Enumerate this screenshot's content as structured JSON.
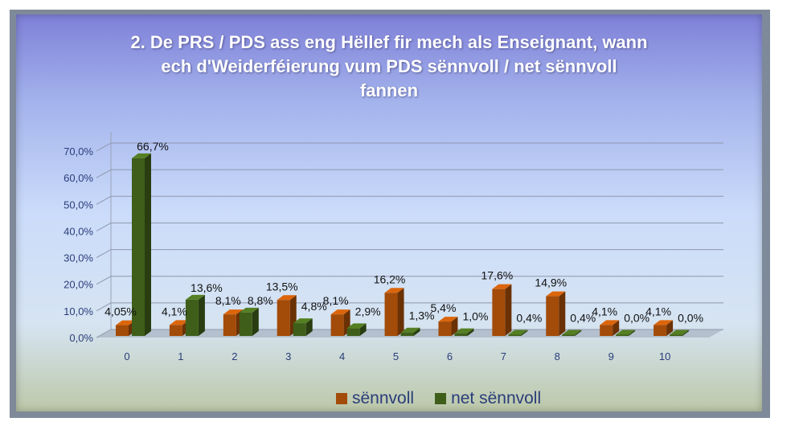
{
  "chart_data": {
    "type": "bar",
    "title_lines": [
      "2. De PRS / PDS ass eng Hëllef fir mech als Enseignant, wann",
      "ech d'Weiderféierung vum PDS sënnvoll / net sënnvoll",
      "fannen"
    ],
    "categories": [
      "0",
      "1",
      "2",
      "3",
      "4",
      "5",
      "6",
      "7",
      "8",
      "9",
      "10"
    ],
    "series": [
      {
        "name": "sënnvoll",
        "color": "#a34b08",
        "values": [
          4.05,
          4.1,
          8.1,
          13.5,
          8.1,
          16.2,
          5.4,
          17.6,
          14.9,
          4.1,
          4.1
        ],
        "labels": [
          "4,05%",
          "4,1%",
          "8,1%",
          "13,5%",
          "8,1%",
          "16,2%",
          "5,4%",
          "17,6%",
          "14,9%",
          "4,1%",
          "4,1%"
        ]
      },
      {
        "name": "net sënnvoll",
        "color": "#3f5e1a",
        "values": [
          66.7,
          13.6,
          8.8,
          4.8,
          2.9,
          1.3,
          1.0,
          0.4,
          0.4,
          0.0,
          0.0
        ],
        "labels": [
          "66,7%",
          "13,6%",
          "8,8%",
          "4,8%",
          "2,9%",
          "1,3%",
          "1,0%",
          "0,4%",
          "0,4%",
          "0,0%",
          "0,0%"
        ]
      }
    ],
    "y_ticks": [
      "0,0%",
      "10,0%",
      "20,0%",
      "30,0%",
      "40,0%",
      "50,0%",
      "60,0%",
      "70,0%"
    ],
    "ylim": [
      0,
      70
    ],
    "grid": true,
    "legend_position": "bottom"
  }
}
